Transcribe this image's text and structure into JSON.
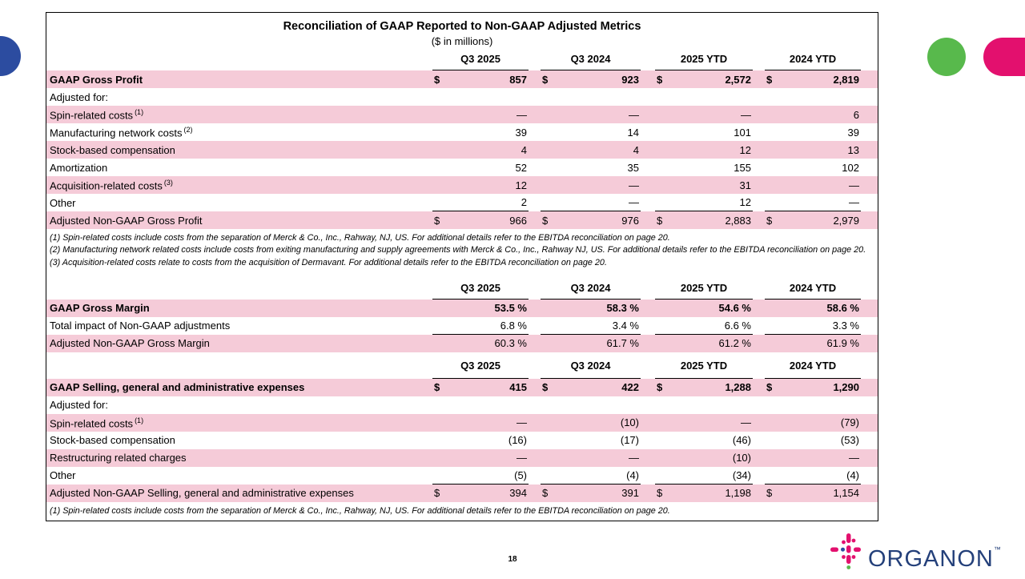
{
  "slide": {
    "title": "Reconciliation of GAAP Reported to Non-GAAP Adjusted Metrics",
    "subtitle": "($ in millions)",
    "page_number": "18"
  },
  "logo": {
    "wordmark": "ORGANON",
    "tm": "™"
  },
  "colors": {
    "row_pink": "#f5cbd8",
    "accent_blue": "#2c4ca0",
    "accent_green": "#58b94c",
    "accent_magenta": "#e3106e",
    "accent_teal": "#1fb0c0",
    "wordmark_navy": "#24407a"
  },
  "sections": [
    {
      "name": "gross-profit",
      "columns": [
        "Q3 2025",
        "Q3 2024",
        "2025 YTD",
        "2024 YTD"
      ],
      "rows": [
        {
          "label": "GAAP Gross Profit",
          "bold": true,
          "pink": true,
          "dollar": "$",
          "values": [
            "857",
            "923",
            "2,572",
            "2,819"
          ]
        },
        {
          "label": "Adjusted for:",
          "values": null
        },
        {
          "label": "Spin-related costs",
          "sup": "(1)",
          "pink": true,
          "values": [
            "—",
            "—",
            "—",
            "6"
          ]
        },
        {
          "label": "Manufacturing network costs",
          "sup": "(2)",
          "values": [
            "39",
            "14",
            "101",
            "39"
          ]
        },
        {
          "label": "Stock-based compensation",
          "pink": true,
          "values": [
            "4",
            "4",
            "12",
            "13"
          ]
        },
        {
          "label": "Amortization",
          "values": [
            "52",
            "35",
            "155",
            "102"
          ]
        },
        {
          "label": "Acquisition-related costs",
          "sup": "(3)",
          "pink": true,
          "values": [
            "12",
            "—",
            "31",
            "—"
          ]
        },
        {
          "label": "Other",
          "rule": true,
          "values": [
            "2",
            "—",
            "12",
            "—"
          ]
        },
        {
          "label": "Adjusted Non-GAAP Gross Profit",
          "pink": true,
          "dollar": "$",
          "values": [
            "966",
            "976",
            "2,883",
            "2,979"
          ]
        }
      ],
      "footnotes": [
        "(1) Spin-related costs include costs from the separation of Merck & Co., Inc., Rahway, NJ, US. For additional details refer to the EBITDA reconciliation on page 20.",
        "(2) Manufacturing network related costs include costs from exiting manufacturing and supply agreements with Merck & Co., Inc., Rahway NJ, US. For additional details refer to the EBITDA reconciliation on page 20.",
        "(3) Acquisition-related costs relate to costs from the acquisition of Dermavant. For additional details refer to the EBITDA reconciliation on page 20."
      ]
    },
    {
      "name": "gross-margin",
      "columns": [
        "Q3 2025",
        "Q3 2024",
        "2025 YTD",
        "2024 YTD"
      ],
      "rows": [
        {
          "label": "GAAP Gross Margin",
          "bold": true,
          "pink": true,
          "values": [
            "53.5 %",
            "58.3 %",
            "54.6 %",
            "58.6 %"
          ]
        },
        {
          "label": "Total impact of Non-GAAP adjustments",
          "rule": true,
          "values": [
            "6.8 %",
            "3.4 %",
            "6.6 %",
            "3.3 %"
          ]
        },
        {
          "label": "Adjusted Non-GAAP Gross Margin",
          "pink": true,
          "values": [
            "60.3 %",
            "61.7 %",
            "61.2 %",
            "61.9 %"
          ]
        }
      ],
      "footnotes": []
    },
    {
      "name": "sga-expenses",
      "spaced": true,
      "columns": [
        "Q3 2025",
        "Q3 2024",
        "2025 YTD",
        "2024 YTD"
      ],
      "rows": [
        {
          "label": "GAAP Selling, general and administrative expenses",
          "bold": true,
          "pink": true,
          "dollar": "$",
          "values": [
            "415",
            "422",
            "1,288",
            "1,290"
          ]
        },
        {
          "label": "Adjusted for:",
          "values": null
        },
        {
          "label": "Spin-related costs",
          "sup": "(1)",
          "pink": true,
          "values": [
            "—",
            "(10)",
            "—",
            "(79)"
          ]
        },
        {
          "label": "Stock-based compensation",
          "values": [
            "(16)",
            "(17)",
            "(46)",
            "(53)"
          ]
        },
        {
          "label": "Restructuring related charges",
          "pink": true,
          "values": [
            "—",
            "—",
            "(10)",
            "—"
          ]
        },
        {
          "label": "Other",
          "rule": true,
          "values": [
            "(5)",
            "(4)",
            "(34)",
            "(4)"
          ]
        },
        {
          "label": "Adjusted Non-GAAP Selling, general and administrative expenses",
          "pink": true,
          "dollar": "$",
          "values": [
            "394",
            "391",
            "1,198",
            "1,154"
          ]
        }
      ],
      "footnotes": [
        "(1) Spin-related costs include costs from the separation of Merck & Co., Inc., Rahway, NJ, US. For additional details refer to the EBITDA reconciliation on page 20."
      ]
    }
  ]
}
